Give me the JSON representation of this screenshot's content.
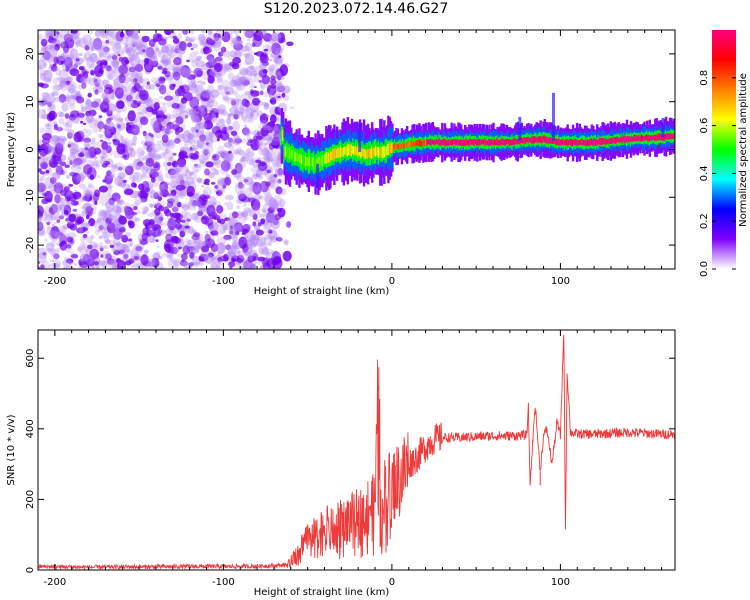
{
  "title": "S120.2023.072.14.46.G27",
  "chart_data": [
    {
      "type": "heatmap",
      "xlabel": "Height of straight line (km)",
      "ylabel": "Frequency (Hz)",
      "xlim": [
        -210,
        168
      ],
      "ylim": [
        -25,
        25
      ],
      "xticks": [
        -200,
        -100,
        0,
        100
      ],
      "yticks": [
        -20,
        -10,
        0,
        10,
        20
      ],
      "noise_region_x": [
        -210,
        -65
      ],
      "signal_ridge": {
        "x": [
          -65,
          -55,
          -45,
          -40,
          -35,
          -30,
          -25,
          -20,
          -15,
          -10,
          -5,
          0,
          10,
          20,
          40,
          60,
          70,
          80,
          90,
          100,
          110,
          120,
          140,
          160,
          168
        ],
        "y": [
          0,
          -2,
          -3,
          -2,
          -1,
          -0.5,
          0,
          -0.5,
          -1,
          -0.5,
          -0.5,
          0.5,
          1,
          1.5,
          1.5,
          1.5,
          1.6,
          2,
          2.2,
          1.5,
          1.5,
          1.5,
          2.2,
          2.6,
          2.8
        ]
      },
      "colorbar": {
        "label": "Normalized spectral amplitude",
        "ticks": [
          "0.0",
          "0.2",
          "0.4",
          "0.6",
          "0.8"
        ],
        "range": [
          0,
          1
        ],
        "colors": [
          "#ffffff",
          "#7f00ff",
          "#0000ff",
          "#00ffff",
          "#00ff00",
          "#ffff00",
          "#ff7f00",
          "#ff0000",
          "#ff0080"
        ]
      }
    },
    {
      "type": "line",
      "xlabel": "Height of straight line (km)",
      "ylabel": "SNR (10 * v/v)",
      "xlim": [
        -210,
        168
      ],
      "ylim": [
        0,
        680
      ],
      "xticks": [
        -200,
        -100,
        0,
        100
      ],
      "yticks": [
        0,
        200,
        400,
        600
      ],
      "color": "#ef3a3a",
      "series": [
        {
          "x": [
            -210,
            -180,
            -150,
            -120,
            -90,
            -70,
            -62,
            -55,
            -50,
            -45,
            -40,
            -35,
            -30,
            -25,
            -20,
            -15,
            -10,
            -8,
            -6,
            -5,
            0,
            5,
            10,
            15,
            20,
            25,
            30,
            40,
            50,
            60,
            70,
            80,
            81,
            82,
            85,
            88,
            90,
            92,
            95,
            98,
            100,
            102,
            103,
            104,
            106,
            110,
            120,
            140,
            160,
            168
          ],
          "y": [
            10,
            8,
            9,
            10,
            10,
            12,
            15,
            60,
            110,
            100,
            130,
            120,
            140,
            150,
            160,
            180,
            190,
            510,
            60,
            230,
            240,
            260,
            300,
            320,
            350,
            370,
            375,
            375,
            378,
            380,
            380,
            382,
            460,
            240,
            470,
            280,
            380,
            400,
            300,
            420,
            380,
            680,
            120,
            560,
            390,
            385,
            385,
            390,
            385,
            385
          ]
        }
      ]
    }
  ]
}
